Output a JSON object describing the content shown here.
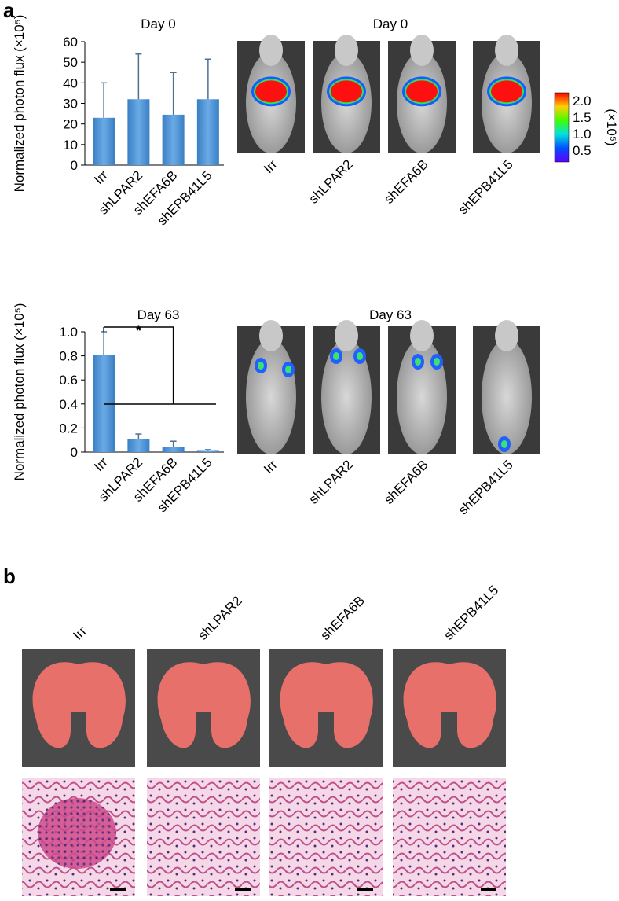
{
  "chart_data": [
    {
      "type": "bar",
      "title": "Day 0",
      "ylabel": "Normalized photon flux (×10⁵)",
      "categories": [
        "Irr",
        "shLPAR2",
        "shEFA6B",
        "shEPB41L5"
      ],
      "values": [
        23,
        32,
        24.5,
        32
      ],
      "errors": [
        17,
        22,
        20.5,
        19.5
      ],
      "color": "#4f93d3",
      "ylim": [
        0,
        60
      ],
      "yticks": [
        0,
        10,
        20,
        30,
        40,
        50,
        60
      ]
    },
    {
      "type": "bar",
      "title": "Day 63",
      "ylabel": "Normalized photon flux (×10⁵)",
      "categories": [
        "Irr",
        "shLPAR2",
        "shEFA6B",
        "shEPB41L5"
      ],
      "values": [
        0.81,
        0.11,
        0.04,
        0.01
      ],
      "errors": [
        0.19,
        0.04,
        0.05,
        0.01
      ],
      "color": "#4f93d3",
      "ylim": [
        0,
        1
      ],
      "yticks": [
        0,
        0.2,
        0.4,
        0.6,
        0.8,
        {
          "value": 1,
          "label": "1.0"
        }
      ],
      "annotation": "*"
    }
  ],
  "panel_a": {
    "label": "a",
    "images_day0": {
      "title": "Day 0",
      "labels": [
        "Irr",
        "shLPAR2",
        "shEFA6B",
        "shEPB41L5"
      ]
    },
    "images_day63": {
      "title": "Day 63",
      "labels": [
        "Irr",
        "shLPAR2",
        "shEFA6B",
        "shEPB41L5"
      ]
    },
    "colorbar": {
      "ticks": [
        "2.0",
        "1.5",
        "1.0",
        "0.5"
      ],
      "unit": "(×10⁵)"
    }
  },
  "panel_b": {
    "label": "b",
    "labels": [
      "Irr",
      "shLPAR2",
      "shEFA6B",
      "shEPB41L5"
    ]
  }
}
